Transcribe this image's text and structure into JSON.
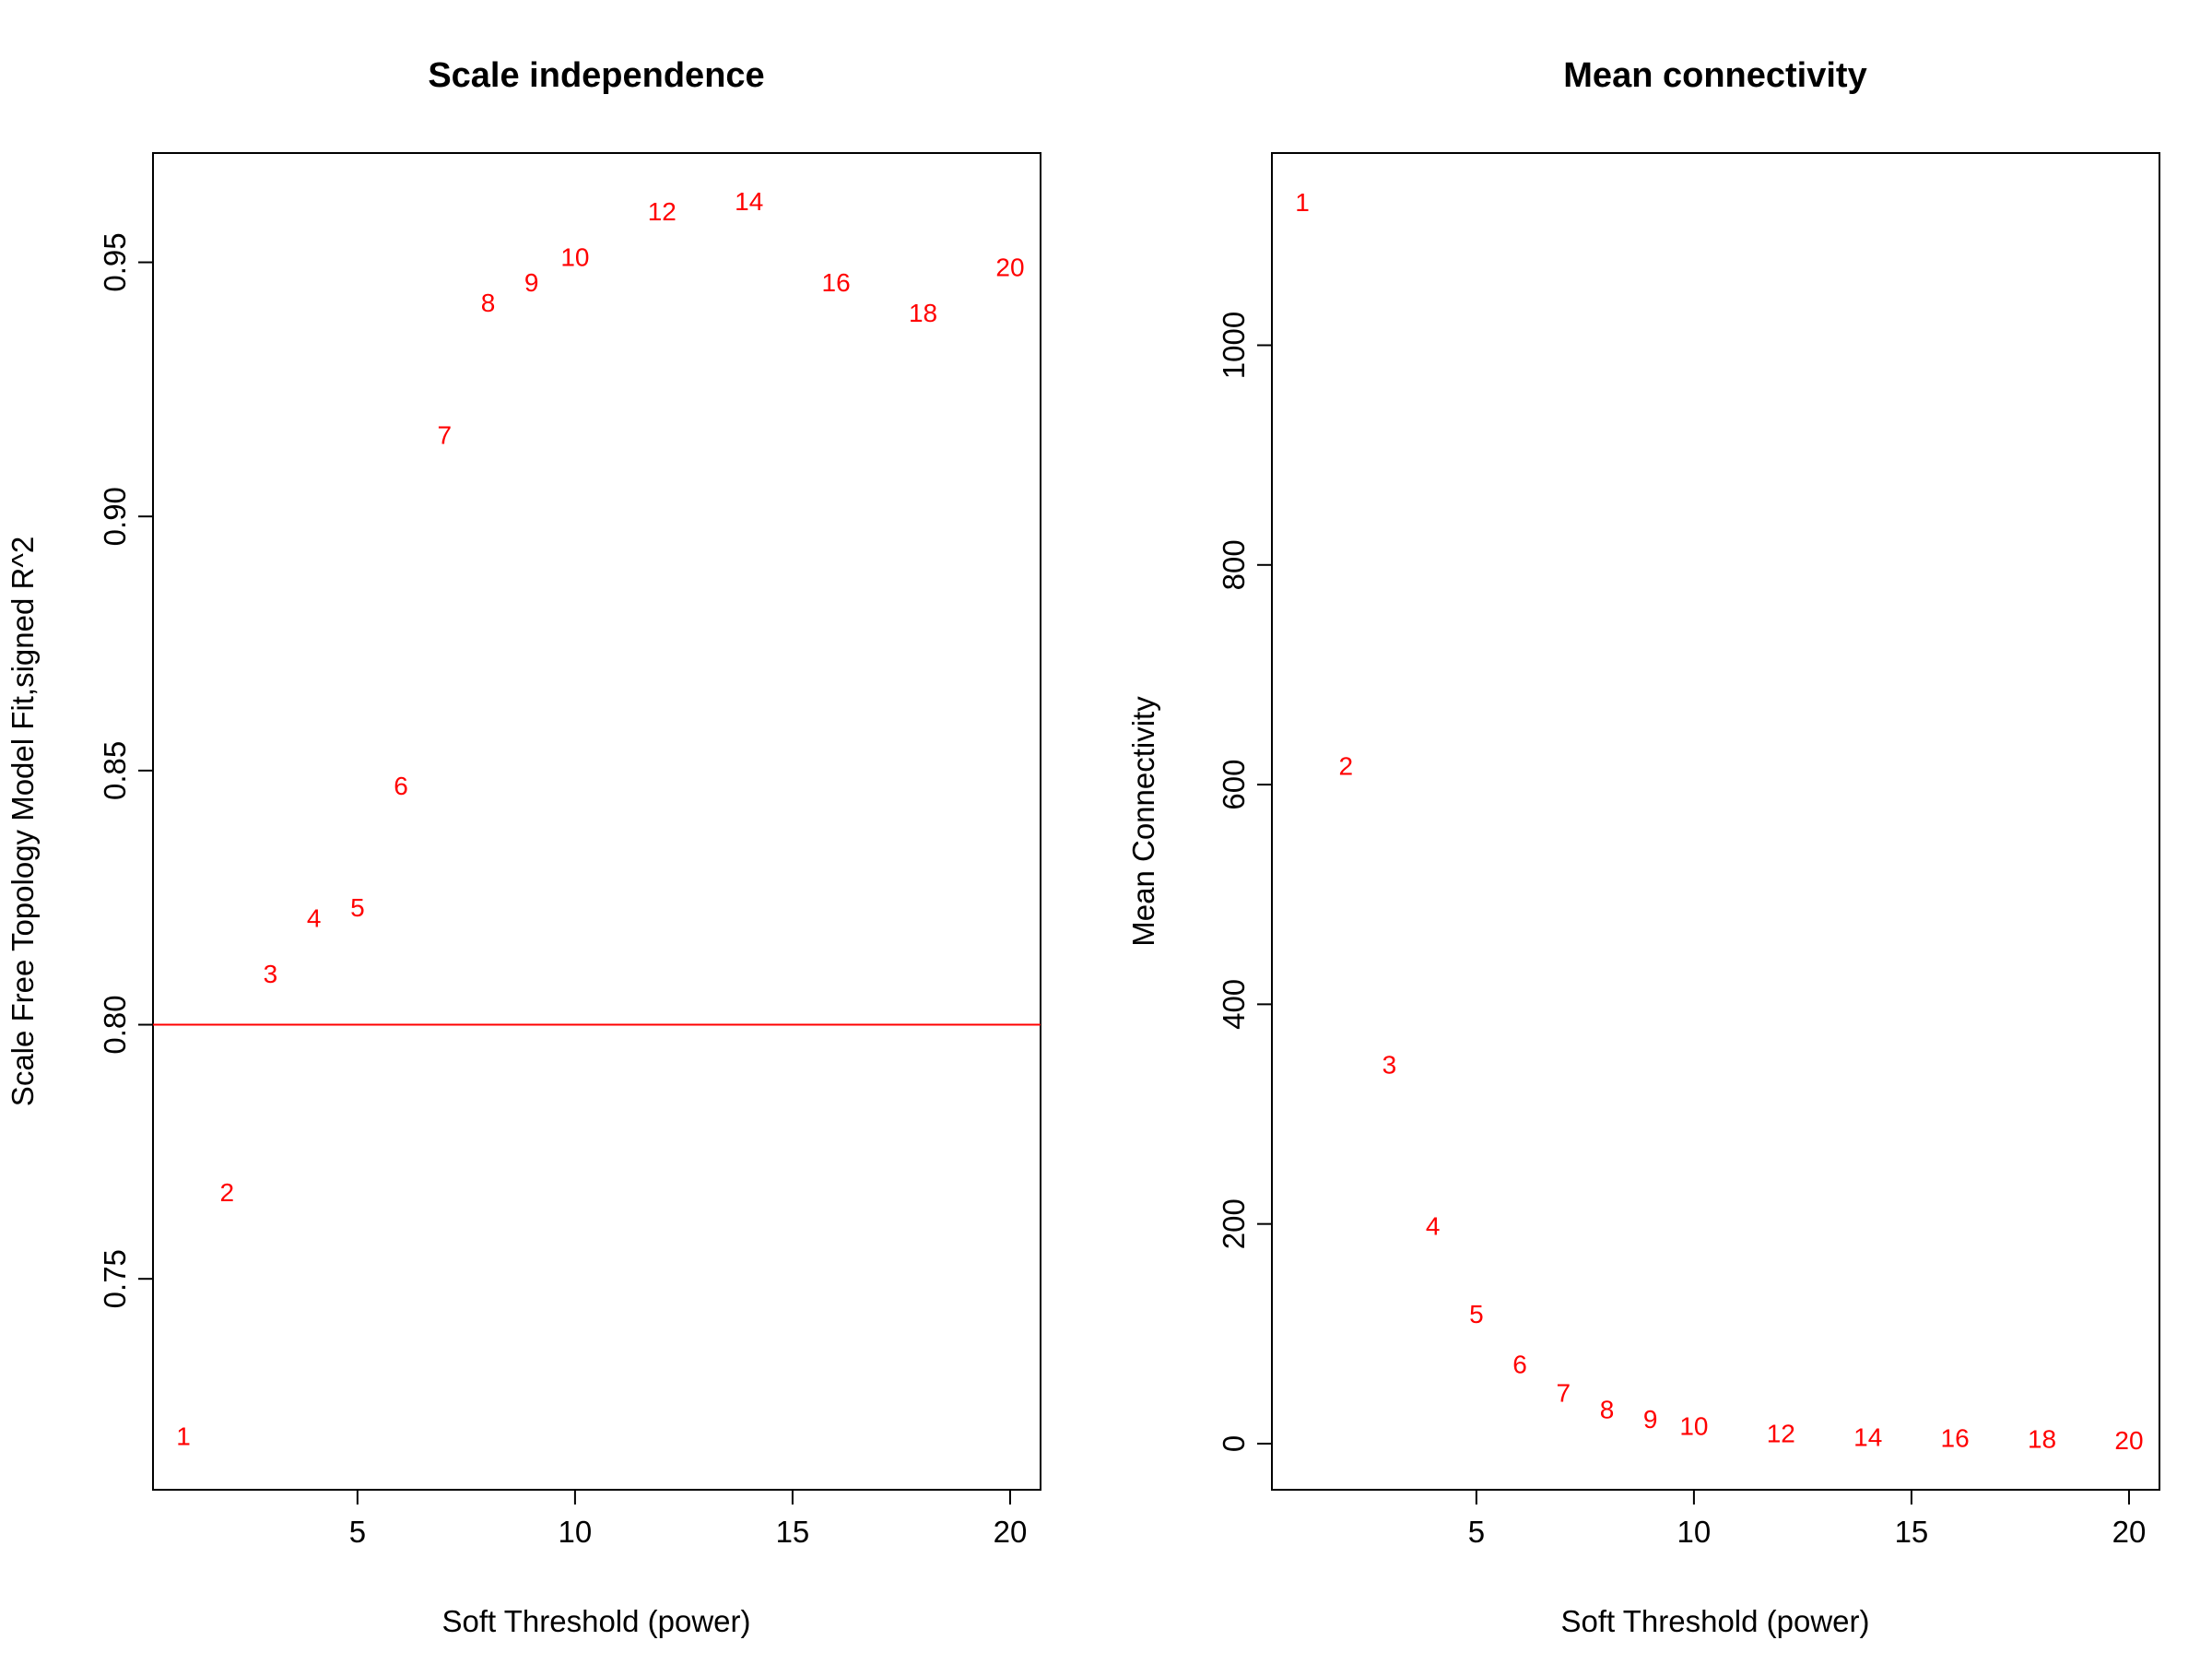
{
  "chart_data": [
    {
      "type": "scatter",
      "title": "Scale independence",
      "xlabel": "Soft Threshold (power)",
      "ylabel": "Scale Free Topology Model Fit,signed R^2",
      "xlim": [
        0.3,
        20.7
      ],
      "ylim": [
        0.7085,
        0.9715
      ],
      "xticks": [
        5,
        10,
        15,
        20
      ],
      "yticks": [
        0.75,
        0.8,
        0.85,
        0.9,
        0.95
      ],
      "ytick_labels": [
        "0.75",
        "0.80",
        "0.85",
        "0.90",
        "0.95"
      ],
      "point_color": "#ff0000",
      "hline": {
        "y": 0.8,
        "color": "#ff0000"
      },
      "points": [
        {
          "label": "1",
          "x": 1,
          "y": 0.719
        },
        {
          "label": "2",
          "x": 2,
          "y": 0.767
        },
        {
          "label": "3",
          "x": 3,
          "y": 0.81
        },
        {
          "label": "4",
          "x": 4,
          "y": 0.821
        },
        {
          "label": "5",
          "x": 5,
          "y": 0.823
        },
        {
          "label": "6",
          "x": 6,
          "y": 0.847
        },
        {
          "label": "7",
          "x": 7,
          "y": 0.916
        },
        {
          "label": "8",
          "x": 8,
          "y": 0.942
        },
        {
          "label": "9",
          "x": 9,
          "y": 0.946
        },
        {
          "label": "10",
          "x": 10,
          "y": 0.951
        },
        {
          "label": "12",
          "x": 12,
          "y": 0.96
        },
        {
          "label": "14",
          "x": 14,
          "y": 0.962
        },
        {
          "label": "16",
          "x": 16,
          "y": 0.946
        },
        {
          "label": "18",
          "x": 18,
          "y": 0.94
        },
        {
          "label": "20",
          "x": 20,
          "y": 0.949
        }
      ]
    },
    {
      "type": "scatter",
      "title": "Mean connectivity",
      "xlabel": "Soft Threshold (power)",
      "ylabel": "Mean Connectivity",
      "xlim": [
        0.3,
        20.7
      ],
      "ylim": [
        -42,
        1175
      ],
      "xticks": [
        5,
        10,
        15,
        20
      ],
      "yticks": [
        0,
        200,
        400,
        600,
        800,
        1000
      ],
      "ytick_labels": [
        "0",
        "200",
        "400",
        "600",
        "800",
        "1000"
      ],
      "point_color": "#ff0000",
      "points": [
        {
          "label": "1",
          "x": 1,
          "y": 1130
        },
        {
          "label": "2",
          "x": 2,
          "y": 617
        },
        {
          "label": "3",
          "x": 3,
          "y": 345
        },
        {
          "label": "4",
          "x": 4,
          "y": 198
        },
        {
          "label": "5",
          "x": 5,
          "y": 118
        },
        {
          "label": "6",
          "x": 6,
          "y": 72
        },
        {
          "label": "7",
          "x": 7,
          "y": 46
        },
        {
          "label": "8",
          "x": 8,
          "y": 31
        },
        {
          "label": "9",
          "x": 9,
          "y": 22
        },
        {
          "label": "10",
          "x": 10,
          "y": 16
        },
        {
          "label": "12",
          "x": 12,
          "y": 9
        },
        {
          "label": "14",
          "x": 14,
          "y": 6
        },
        {
          "label": "16",
          "x": 16,
          "y": 5
        },
        {
          "label": "18",
          "x": 18,
          "y": 4
        },
        {
          "label": "20",
          "x": 20,
          "y": 3
        }
      ]
    }
  ]
}
